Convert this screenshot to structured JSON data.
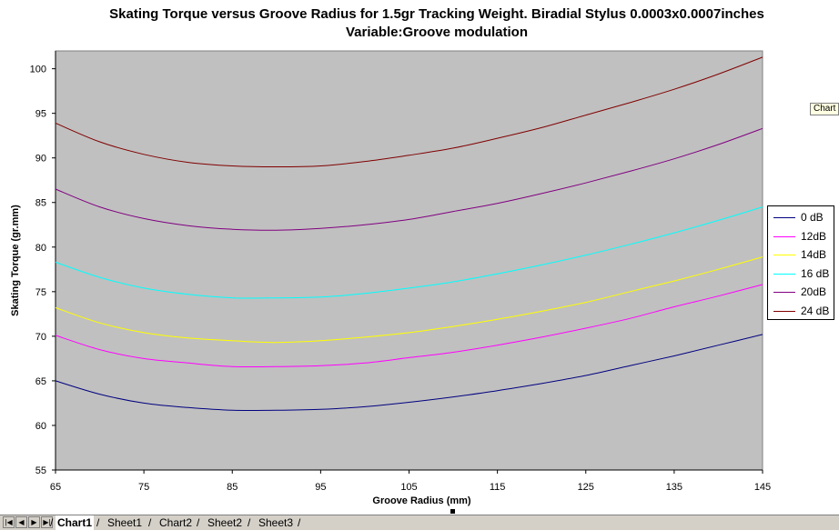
{
  "chart_data": {
    "type": "line",
    "title": "Skating Torque versus Groove Radius for 1.5gr Tracking Weight. Biradial Stylus 0.0003x0.0007inches",
    "subtitle": "Variable:Groove modulation",
    "xlabel": "Groove Radius (mm)",
    "ylabel": "Skating Torque (gr.mm)",
    "xlim": [
      65,
      145
    ],
    "ylim": [
      55,
      102
    ],
    "xticks": [
      65,
      75,
      85,
      95,
      105,
      115,
      125,
      135,
      145
    ],
    "yticks": [
      55,
      60,
      65,
      70,
      75,
      80,
      85,
      90,
      95,
      100
    ],
    "grid": false,
    "legend_position": "right",
    "plot_background": "#c0c0c0",
    "x": [
      65,
      70,
      75,
      80,
      85,
      90,
      95,
      100,
      105,
      110,
      115,
      120,
      125,
      130,
      135,
      140,
      145
    ],
    "series": [
      {
        "name": "0 dB",
        "color": "#000080",
        "values": [
          65.0,
          63.5,
          62.5,
          62.0,
          61.7,
          61.7,
          61.8,
          62.1,
          62.6,
          63.2,
          63.9,
          64.7,
          65.6,
          66.7,
          67.8,
          69.0,
          70.2
        ]
      },
      {
        "name": "12dB",
        "color": "#ff00ff",
        "values": [
          70.1,
          68.5,
          67.5,
          67.0,
          66.6,
          66.6,
          66.7,
          67.0,
          67.6,
          68.2,
          69.0,
          69.9,
          70.9,
          72.0,
          73.3,
          74.5,
          75.8
        ]
      },
      {
        "name": "14dB",
        "color": "#ffff00",
        "values": [
          73.2,
          71.5,
          70.4,
          69.8,
          69.5,
          69.3,
          69.5,
          69.9,
          70.4,
          71.1,
          71.9,
          72.8,
          73.8,
          75.0,
          76.2,
          77.5,
          78.9
        ]
      },
      {
        "name": "16 dB",
        "color": "#00ffff",
        "values": [
          78.3,
          76.6,
          75.4,
          74.7,
          74.3,
          74.3,
          74.4,
          74.8,
          75.4,
          76.1,
          77.0,
          78.0,
          79.1,
          80.3,
          81.6,
          83.0,
          84.5
        ]
      },
      {
        "name": "20dB",
        "color": "#800080",
        "values": [
          86.5,
          84.5,
          83.2,
          82.4,
          82.0,
          81.9,
          82.1,
          82.5,
          83.1,
          84.0,
          84.9,
          86.0,
          87.2,
          88.5,
          89.9,
          91.5,
          93.3
        ]
      },
      {
        "name": "24 dB",
        "color": "#800000",
        "values": [
          93.9,
          91.8,
          90.4,
          89.5,
          89.1,
          89.0,
          89.1,
          89.6,
          90.3,
          91.1,
          92.2,
          93.4,
          94.8,
          96.2,
          97.7,
          99.4,
          101.3
        ]
      }
    ]
  },
  "side_tag": "Chart",
  "sheet_tabs": [
    "Chart1",
    "Sheet1",
    "Chart2",
    "Sheet2",
    "Sheet3"
  ],
  "active_tab": "Chart1"
}
